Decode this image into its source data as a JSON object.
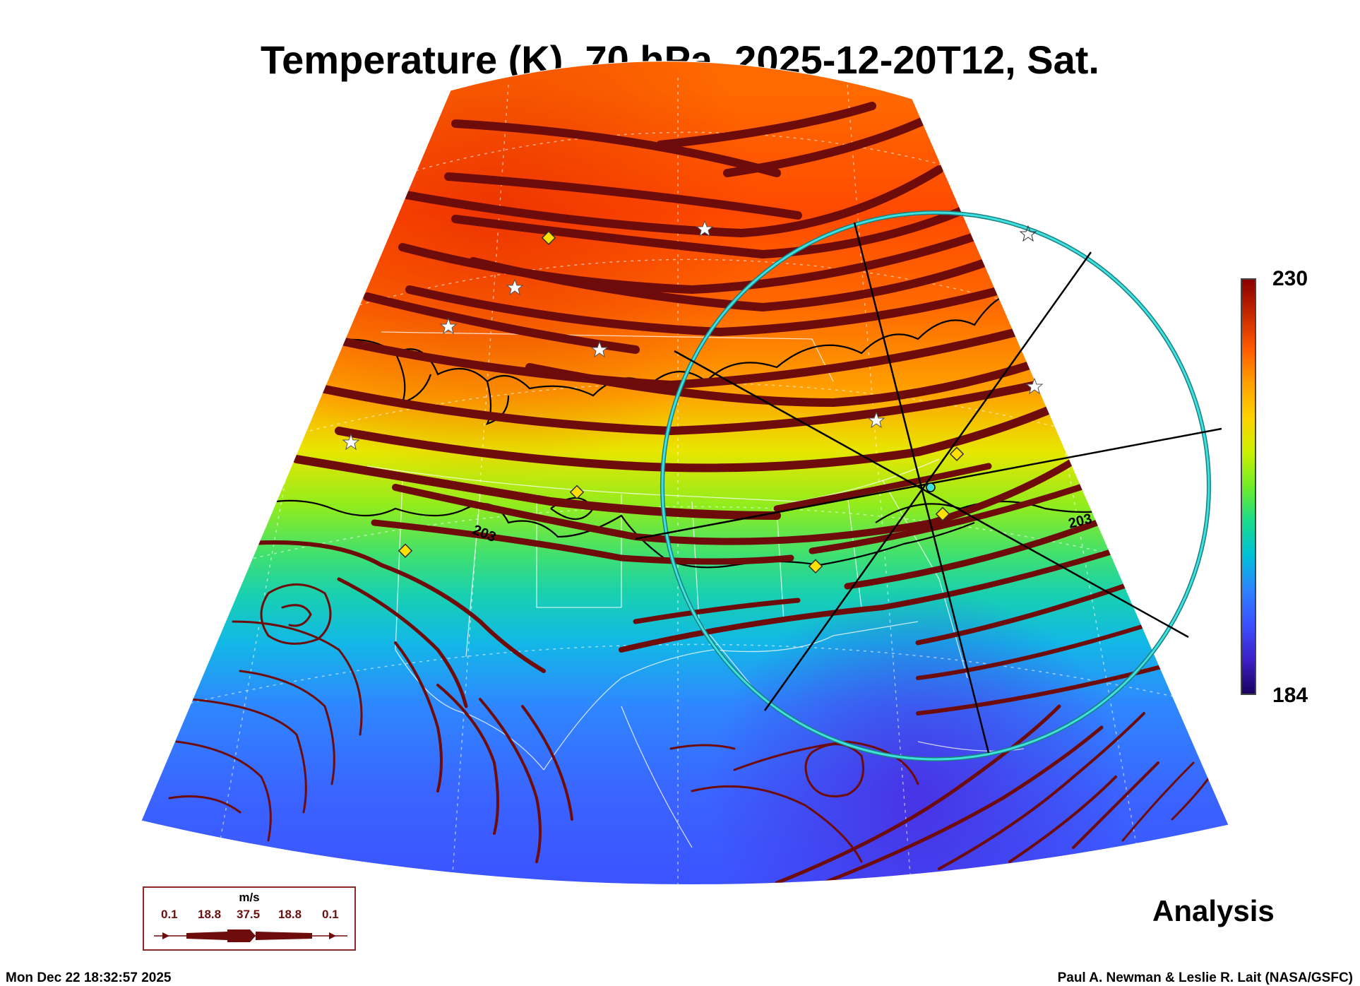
{
  "title": "Temperature (K), 70 hPa, 2025-12-20T12, Sat.",
  "colorbar": {
    "max_label": "230",
    "min_label": "184",
    "colors": [
      "#8b0000",
      "#c62800",
      "#ff5a00",
      "#ffa000",
      "#ffd200",
      "#ccf000",
      "#70ec28",
      "#18dc8c",
      "#00c0d8",
      "#2d82ff",
      "#3c50ff",
      "#3c20c8",
      "#1a0060"
    ]
  },
  "contour_labels": [
    "203",
    "203"
  ],
  "legend": {
    "unit": "m/s",
    "values": [
      "0.1",
      "18.8",
      "37.5",
      "18.8",
      "0.1"
    ]
  },
  "analysis_label": "Analysis",
  "footer": {
    "date": "Mon Dec 22 18:32:57 2025",
    "credit": "Paul A. Newman & Leslie R. Lait (NASA/GSFC)"
  },
  "colors": {
    "streamline": "#6e0b0b",
    "circle": "#28c8c8",
    "marker_yellow": "#ffe000",
    "state_lines": "#ffffff"
  }
}
